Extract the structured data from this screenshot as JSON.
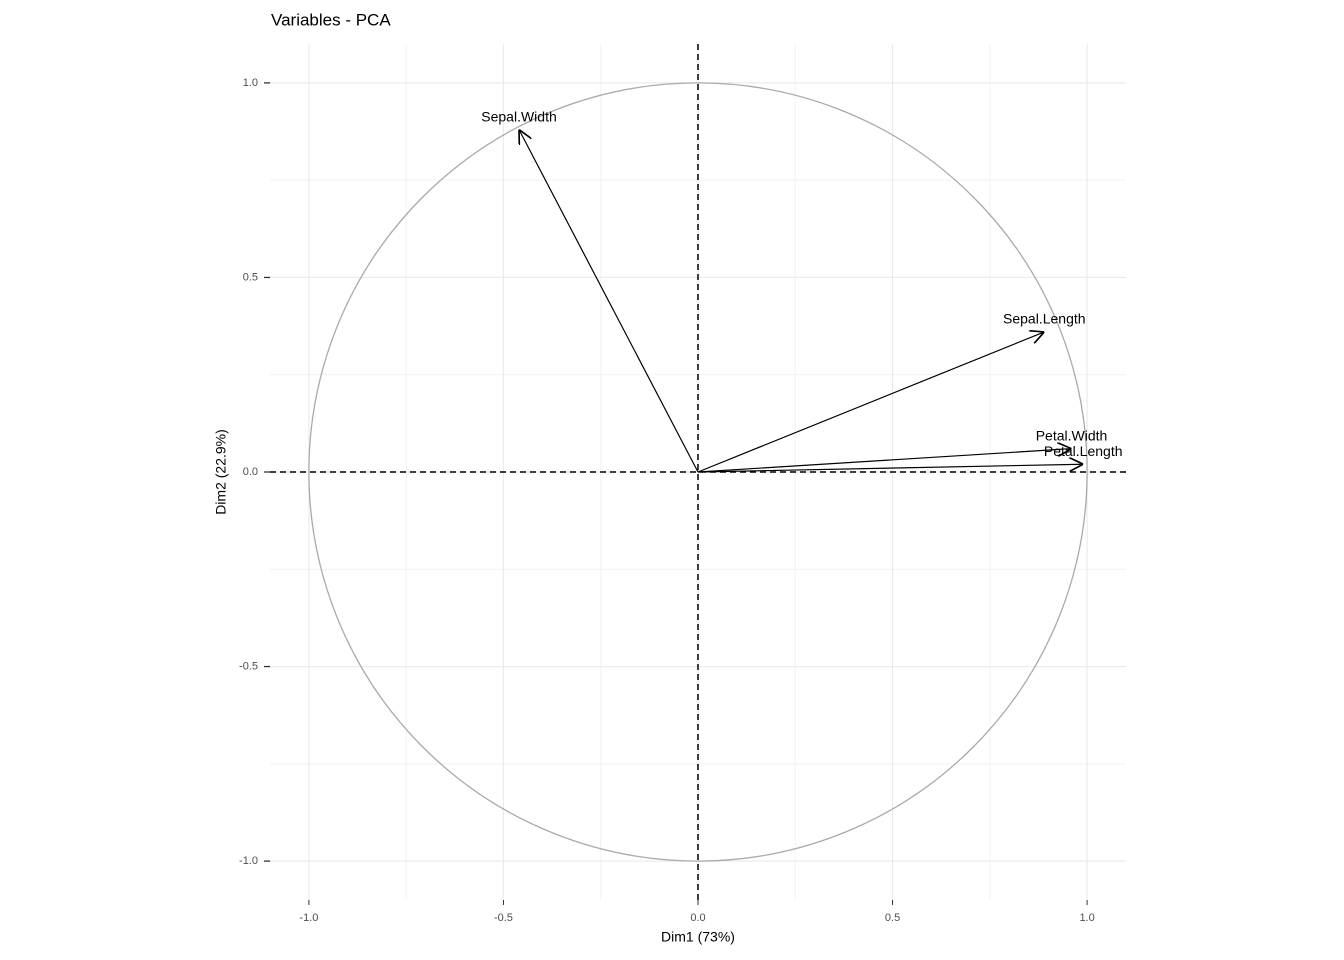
{
  "chart_data": {
    "type": "pca_variables",
    "title": "Variables - PCA",
    "xlabel": "Dim1 (73%)",
    "ylabel": "Dim2 (22.9%)",
    "series": [
      {
        "name": "Sepal.Length",
        "x": 0.89,
        "y": 0.36
      },
      {
        "name": "Sepal.Width",
        "x": -0.46,
        "y": 0.88
      },
      {
        "name": "Petal.Length",
        "x": 0.99,
        "y": 0.02
      },
      {
        "name": "Petal.Width",
        "x": 0.96,
        "y": 0.06
      }
    ],
    "color": "#000000",
    "circle_color": "#aaaaaa",
    "xlim": [
      -1.1,
      1.1
    ],
    "ylim": [
      -1.1,
      1.1
    ],
    "xticks": [
      {
        "value": -1,
        "label": "-1.0"
      },
      -0.5,
      {
        "value": 0,
        "label": "0.0"
      },
      0.5,
      {
        "value": 1,
        "label": "1.0"
      }
    ],
    "yticks": [
      {
        "value": -1,
        "label": "-1.0"
      },
      -0.5,
      {
        "value": 0,
        "label": "0.0"
      },
      0.5,
      {
        "value": 1,
        "label": "1.0"
      }
    ],
    "hline": 0,
    "vline": 0,
    "grid": true
  }
}
